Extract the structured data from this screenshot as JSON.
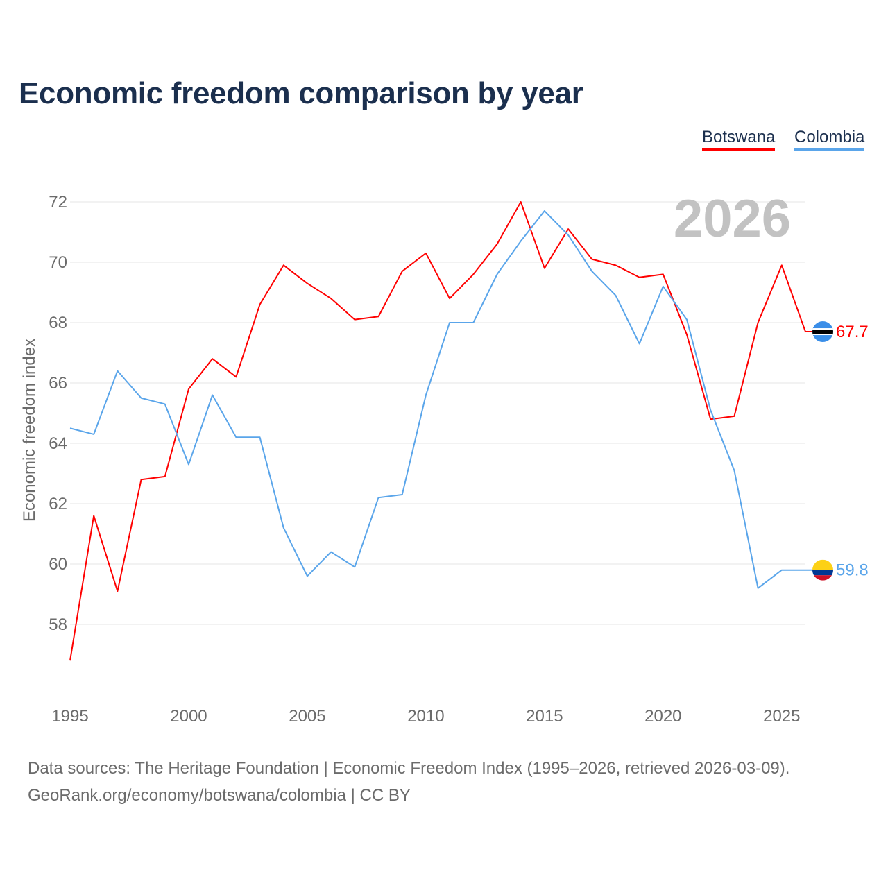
{
  "title": "Economic freedom comparison by year",
  "year_watermark": "2026",
  "source_line1": "Data sources: The Heritage Foundation | Economic Freedom Index (1995–2026, retrieved 2026-03-09).",
  "source_line2": "GeoRank.org/economy/botswana/colombia | CC BY",
  "chart_data": {
    "type": "line",
    "title": "Economic freedom comparison by year",
    "xlabel": "",
    "ylabel": "Economic freedom index",
    "xlim": [
      1995,
      2026
    ],
    "ylim": [
      56.5,
      72.5
    ],
    "x_ticks": [
      1995,
      2000,
      2005,
      2010,
      2015,
      2020,
      2025
    ],
    "y_ticks": [
      58,
      60,
      62,
      64,
      66,
      68,
      70,
      72
    ],
    "grid": true,
    "legend_position": "top-right",
    "x": [
      1995,
      1996,
      1997,
      1998,
      1999,
      2000,
      2001,
      2002,
      2003,
      2004,
      2005,
      2006,
      2007,
      2008,
      2009,
      2010,
      2011,
      2012,
      2013,
      2014,
      2015,
      2016,
      2017,
      2018,
      2019,
      2020,
      2021,
      2022,
      2023,
      2024,
      2025,
      2026
    ],
    "series": [
      {
        "name": "Botswana",
        "color": "#ff0000",
        "end_label": "67.7",
        "values": [
          56.8,
          61.6,
          59.1,
          62.8,
          62.9,
          65.8,
          66.8,
          66.2,
          68.6,
          69.9,
          69.3,
          68.8,
          68.1,
          68.2,
          69.7,
          70.3,
          68.8,
          69.6,
          70.6,
          72.0,
          69.8,
          71.1,
          70.1,
          69.9,
          69.5,
          69.6,
          67.6,
          64.8,
          64.9,
          68.0,
          69.9,
          67.7
        ]
      },
      {
        "name": "Colombia",
        "color": "#5aa5ea",
        "end_label": "59.8",
        "values": [
          64.5,
          64.3,
          66.4,
          65.5,
          65.3,
          63.3,
          65.6,
          64.2,
          64.2,
          61.2,
          59.6,
          60.4,
          59.9,
          62.2,
          62.3,
          65.6,
          68.0,
          68.0,
          69.6,
          70.7,
          71.7,
          70.9,
          69.7,
          68.9,
          67.3,
          69.2,
          68.1,
          65.1,
          63.1,
          59.2,
          59.8,
          59.8
        ]
      }
    ]
  }
}
